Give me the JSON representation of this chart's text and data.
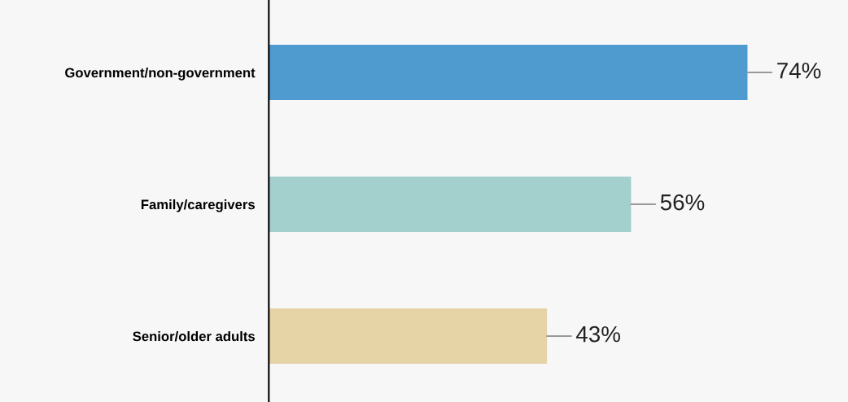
{
  "chart_data": {
    "type": "bar",
    "orientation": "horizontal",
    "categories": [
      "Government/non-government",
      "Family/caregivers",
      "Senior/older adults"
    ],
    "values": [
      74,
      56,
      43
    ],
    "colors": [
      "#4f9bcf",
      "#a3d0cc",
      "#e6d3a6"
    ],
    "value_labels": [
      "74%",
      "56%",
      "43%"
    ],
    "tick_labels": "y"
  }
}
